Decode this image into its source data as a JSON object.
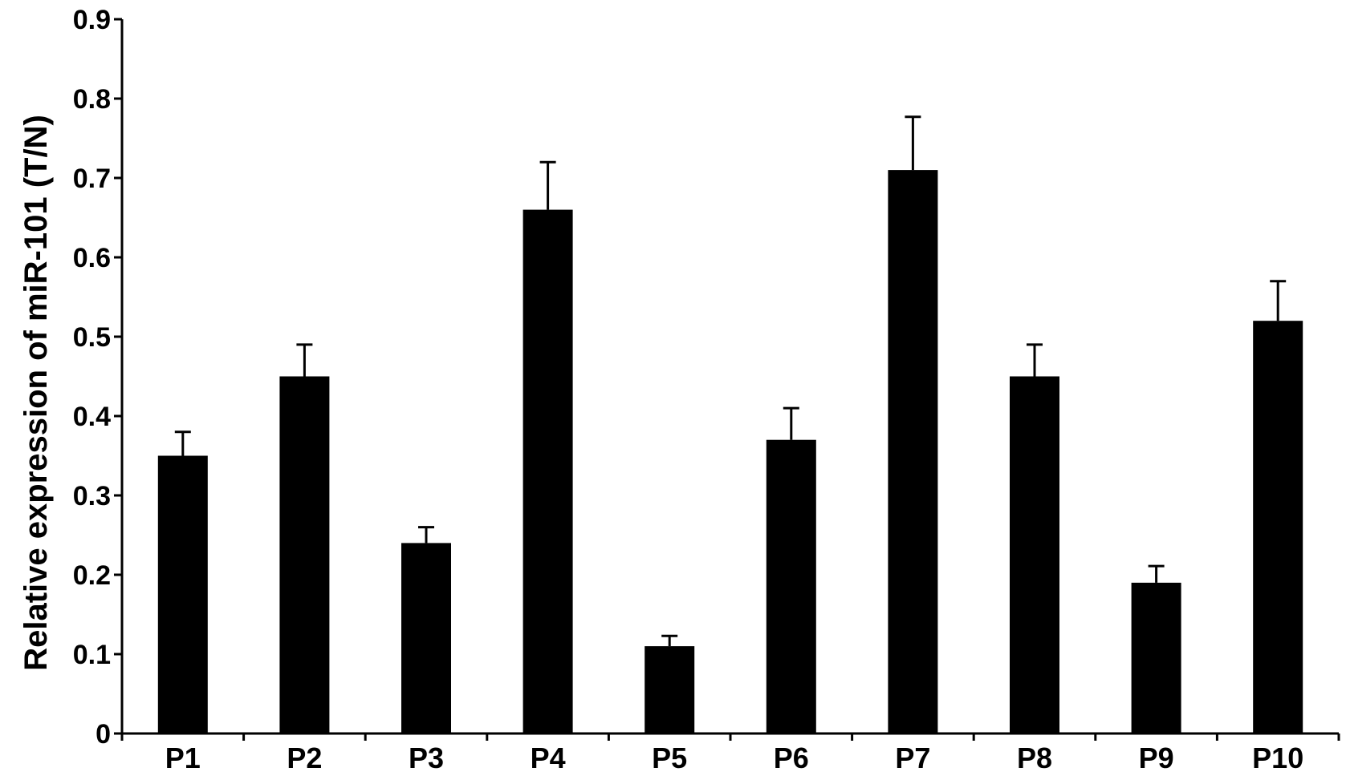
{
  "chart_data": {
    "type": "bar",
    "title": "",
    "xlabel": "",
    "ylabel": "Relative expression of miR-101 (T/N)",
    "categories": [
      "P1",
      "P2",
      "P3",
      "P4",
      "P5",
      "P6",
      "P7",
      "P8",
      "P9",
      "P10"
    ],
    "values": [
      0.35,
      0.45,
      0.24,
      0.66,
      0.11,
      0.37,
      0.71,
      0.45,
      0.19,
      0.52
    ],
    "error_upper": [
      0.38,
      0.49,
      0.26,
      0.72,
      0.123,
      0.41,
      0.777,
      0.49,
      0.211,
      0.57
    ],
    "ylim": [
      0,
      0.9
    ],
    "yticks": [
      0,
      0.1,
      0.2,
      0.3,
      0.4,
      0.5,
      0.6,
      0.7,
      0.8,
      0.9
    ],
    "ytick_labels": [
      "0",
      "0.1",
      "0.2",
      "0.3",
      "0.4",
      "0.5",
      "0.6",
      "0.7",
      "0.8",
      "0.9"
    ],
    "grid": false,
    "legend": "none",
    "bar_color": "#000000"
  }
}
